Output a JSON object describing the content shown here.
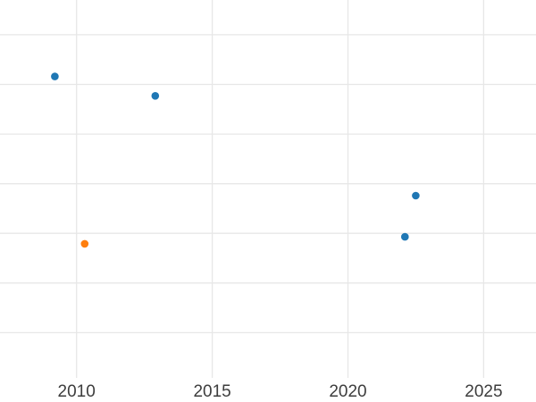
{
  "figure": {
    "background_color": "#ffffff",
    "grid_color": "#e7e7e7",
    "tick_label_color": "#3d3d3d",
    "tick_label_font_size_px": 19
  },
  "chart_data": {
    "type": "scatter",
    "title": "",
    "xlabel": "",
    "ylabel": "",
    "x_tick_labels": [
      "2010",
      "2015",
      "2020",
      "2025"
    ],
    "x_tick_values": [
      2010,
      2015,
      2020,
      2025
    ],
    "xlim": [
      2007.18,
      2026.93
    ],
    "ylim": [
      0.09,
      7.7
    ],
    "y_gridline_values": [
      1,
      2,
      3,
      4,
      5,
      6,
      7
    ],
    "y_tick_labels_visible": false,
    "y_value_units": "unlabeled axis; values expressed in gridline units, bottom visible gridline = 1",
    "grid": true,
    "legend": false,
    "marker_radius_px": 4.3,
    "series": [
      {
        "name": "blue-series",
        "color": "#1f77b4",
        "points": [
          {
            "x": 2009.2,
            "y": 6.16
          },
          {
            "x": 2012.9,
            "y": 5.77
          },
          {
            "x": 2022.1,
            "y": 2.93
          },
          {
            "x": 2022.5,
            "y": 3.76
          }
        ]
      },
      {
        "name": "orange-series",
        "color": "#ff7f0e",
        "points": [
          {
            "x": 2010.3,
            "y": 2.79
          }
        ]
      }
    ]
  }
}
